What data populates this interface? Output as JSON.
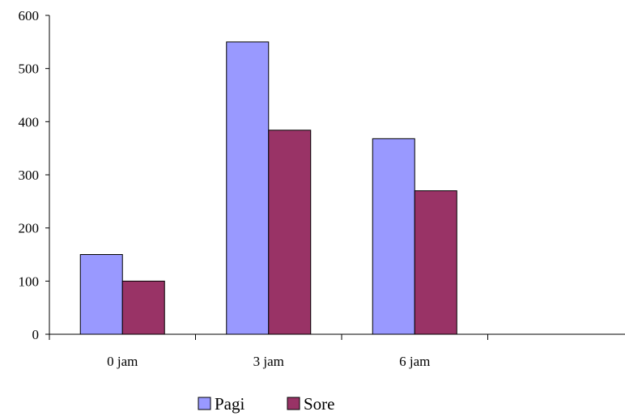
{
  "chart_data": {
    "type": "bar",
    "categories": [
      "0 jam",
      "3 jam",
      "6 jam",
      ""
    ],
    "series": [
      {
        "name": "Pagi",
        "values": [
          150,
          550,
          368,
          null
        ],
        "color": "#9999ff"
      },
      {
        "name": "Sore",
        "values": [
          100,
          384,
          270,
          null
        ],
        "color": "#993366"
      }
    ],
    "ylim": [
      0,
      600
    ],
    "yticks": [
      0,
      100,
      200,
      300,
      400,
      500,
      600
    ],
    "legend": "bottom",
    "grid": false
  }
}
